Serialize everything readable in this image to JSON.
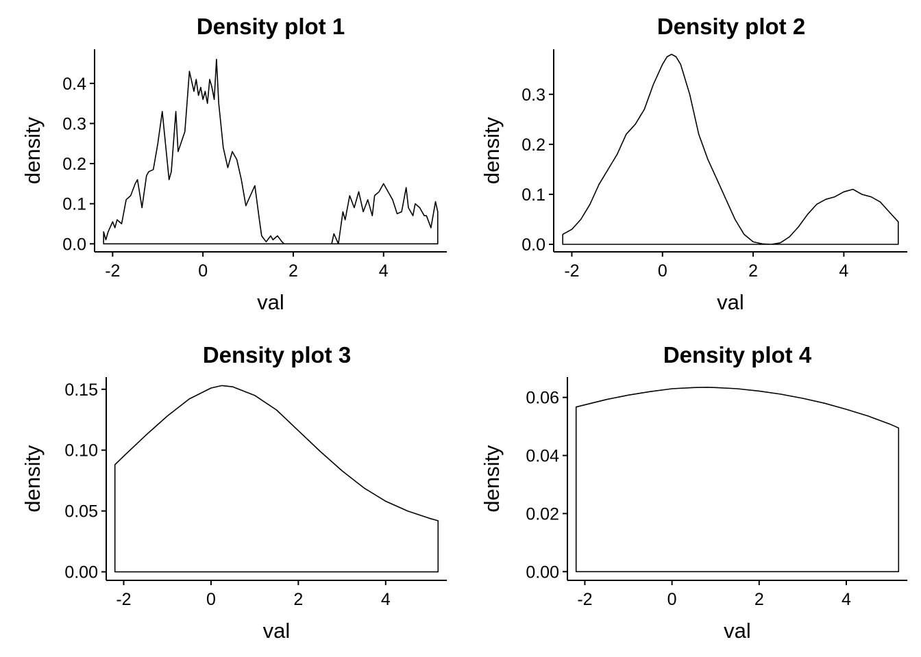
{
  "chart_data": [
    {
      "type": "area",
      "title": "Density plot 1",
      "xlabel": "val",
      "ylabel": "density",
      "xlim": [
        -2.4,
        5.4
      ],
      "ylim": [
        -0.02,
        0.485
      ],
      "x_ticks": [
        -2,
        0,
        2,
        4
      ],
      "x_tick_labels": [
        "-2",
        "0",
        "2",
        "4"
      ],
      "y_ticks": [
        0.0,
        0.1,
        0.2,
        0.3,
        0.4
      ],
      "y_tick_labels": [
        "0.0",
        "0.1",
        "0.2",
        "0.3",
        "0.4"
      ],
      "grid": false,
      "legend": "none",
      "x": [
        -2.2,
        -2.15,
        -2.1,
        -2.0,
        -1.95,
        -1.9,
        -1.8,
        -1.7,
        -1.6,
        -1.5,
        -1.45,
        -1.35,
        -1.25,
        -1.2,
        -1.1,
        -1.0,
        -0.9,
        -0.75,
        -0.7,
        -0.6,
        -0.55,
        -0.4,
        -0.3,
        -0.2,
        -0.15,
        -0.1,
        -0.05,
        0.0,
        0.05,
        0.1,
        0.15,
        0.2,
        0.25,
        0.3,
        0.35,
        0.45,
        0.55,
        0.65,
        0.75,
        0.85,
        0.95,
        1.05,
        1.15,
        1.25,
        1.3,
        1.4,
        1.5,
        1.55,
        1.65,
        1.75,
        1.8,
        1.9,
        1.95,
        2.05,
        2.15,
        2.2,
        2.85,
        2.9,
        3.0,
        3.1,
        3.15,
        3.25,
        3.35,
        3.45,
        3.55,
        3.65,
        3.75,
        3.8,
        3.9,
        4.0,
        4.1,
        4.2,
        4.3,
        4.4,
        4.5,
        4.55,
        4.65,
        4.7,
        4.8,
        4.9,
        4.95,
        5.05,
        5.15,
        5.2
      ],
      "y": [
        0.03,
        0.01,
        0.03,
        0.055,
        0.04,
        0.06,
        0.05,
        0.11,
        0.12,
        0.15,
        0.16,
        0.09,
        0.17,
        0.18,
        0.185,
        0.25,
        0.33,
        0.16,
        0.18,
        0.33,
        0.23,
        0.28,
        0.43,
        0.38,
        0.41,
        0.37,
        0.39,
        0.36,
        0.38,
        0.35,
        0.41,
        0.39,
        0.36,
        0.46,
        0.35,
        0.24,
        0.19,
        0.23,
        0.21,
        0.16,
        0.095,
        0.12,
        0.145,
        0.06,
        0.02,
        0.005,
        0.02,
        0.01,
        0.02,
        0.005,
        0.0,
        0.0,
        0.0,
        0.0,
        0.0,
        0.0,
        0.0,
        0.025,
        0.0,
        0.08,
        0.06,
        0.12,
        0.09,
        0.13,
        0.08,
        0.11,
        0.07,
        0.12,
        0.13,
        0.15,
        0.13,
        0.11,
        0.075,
        0.08,
        0.14,
        0.09,
        0.07,
        0.1,
        0.09,
        0.07,
        0.07,
        0.04,
        0.105,
        0.08
      ]
    },
    {
      "type": "area",
      "title": "Density plot 2",
      "xlabel": "val",
      "ylabel": "density",
      "xlim": [
        -2.4,
        5.4
      ],
      "ylim": [
        -0.015,
        0.39
      ],
      "x_ticks": [
        -2,
        0,
        2,
        4
      ],
      "x_tick_labels": [
        "-2",
        "0",
        "2",
        "4"
      ],
      "y_ticks": [
        0.0,
        0.1,
        0.2,
        0.3
      ],
      "y_tick_labels": [
        "0.0",
        "0.1",
        "0.2",
        "0.3"
      ],
      "grid": false,
      "legend": "none",
      "x": [
        -2.2,
        -2.0,
        -1.8,
        -1.6,
        -1.4,
        -1.2,
        -1.0,
        -0.8,
        -0.6,
        -0.4,
        -0.2,
        0.0,
        0.1,
        0.2,
        0.3,
        0.4,
        0.6,
        0.8,
        1.0,
        1.2,
        1.4,
        1.6,
        1.8,
        2.0,
        2.2,
        2.4,
        2.6,
        2.8,
        3.0,
        3.2,
        3.4,
        3.6,
        3.8,
        4.0,
        4.2,
        4.4,
        4.6,
        4.8,
        5.0,
        5.2
      ],
      "y": [
        0.02,
        0.03,
        0.05,
        0.08,
        0.12,
        0.15,
        0.18,
        0.22,
        0.24,
        0.27,
        0.32,
        0.36,
        0.375,
        0.38,
        0.375,
        0.36,
        0.3,
        0.22,
        0.17,
        0.13,
        0.09,
        0.05,
        0.02,
        0.005,
        0.001,
        0.0,
        0.003,
        0.015,
        0.035,
        0.06,
        0.08,
        0.09,
        0.095,
        0.105,
        0.11,
        0.1,
        0.095,
        0.085,
        0.065,
        0.045
      ]
    },
    {
      "type": "area",
      "title": "Density plot 3",
      "xlabel": "val",
      "ylabel": "density",
      "xlim": [
        -2.4,
        5.4
      ],
      "ylim": [
        -0.007,
        0.16
      ],
      "x_ticks": [
        -2,
        0,
        2,
        4
      ],
      "x_tick_labels": [
        "-2",
        "0",
        "2",
        "4"
      ],
      "y_ticks": [
        0.0,
        0.05,
        0.1,
        0.15
      ],
      "y_tick_labels": [
        "0.00",
        "0.05",
        "0.10",
        "0.15"
      ],
      "grid": false,
      "legend": "none",
      "x": [
        -2.2,
        -2.0,
        -1.5,
        -1.0,
        -0.5,
        0.0,
        0.25,
        0.5,
        1.0,
        1.5,
        2.0,
        2.5,
        3.0,
        3.5,
        4.0,
        4.5,
        5.0,
        5.2
      ],
      "y": [
        0.088,
        0.095,
        0.112,
        0.128,
        0.142,
        0.151,
        0.153,
        0.152,
        0.145,
        0.133,
        0.116,
        0.099,
        0.083,
        0.069,
        0.058,
        0.05,
        0.044,
        0.042
      ]
    },
    {
      "type": "area",
      "title": "Density plot 4",
      "xlabel": "val",
      "ylabel": "density",
      "xlim": [
        -2.4,
        5.4
      ],
      "ylim": [
        -0.003,
        0.067
      ],
      "x_ticks": [
        -2,
        0,
        2,
        4
      ],
      "x_tick_labels": [
        "-2",
        "0",
        "2",
        "4"
      ],
      "y_ticks": [
        0.0,
        0.02,
        0.04,
        0.06
      ],
      "y_tick_labels": [
        "0.00",
        "0.02",
        "0.04",
        "0.06"
      ],
      "grid": false,
      "legend": "none",
      "x": [
        -2.2,
        -1.5,
        -1.0,
        -0.5,
        0.0,
        0.5,
        0.8,
        1.0,
        1.5,
        2.0,
        2.5,
        3.0,
        3.5,
        4.0,
        4.5,
        5.0,
        5.2
      ],
      "y": [
        0.0567,
        0.0593,
        0.0608,
        0.062,
        0.063,
        0.0634,
        0.0635,
        0.0634,
        0.063,
        0.0622,
        0.0611,
        0.0597,
        0.058,
        0.0559,
        0.0536,
        0.0508,
        0.0495
      ]
    }
  ]
}
